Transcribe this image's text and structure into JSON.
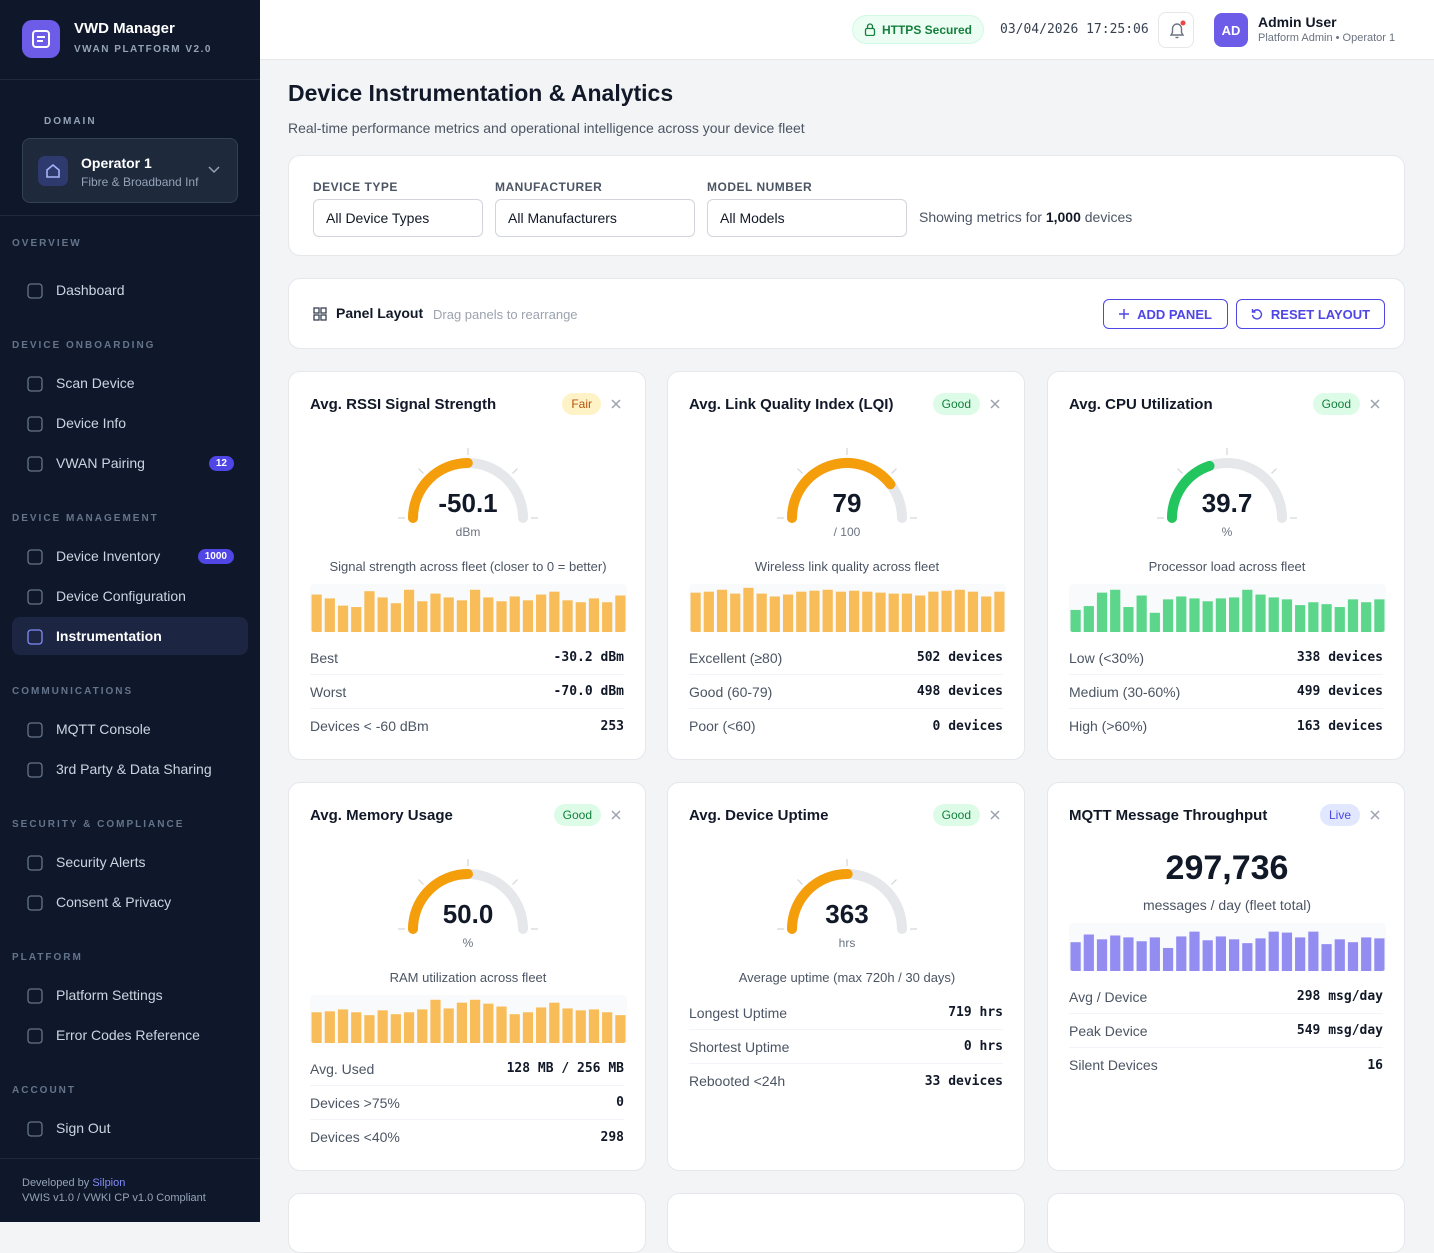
{
  "sidebar": {
    "brand": {
      "title": "VWD Manager",
      "subtitle": "VWAN PLATFORM V2.0"
    },
    "domain": {
      "label": "DOMAIN",
      "name": "Operator 1",
      "sub": "Fibre & Broadband Inf"
    },
    "sections": [
      {
        "title": "OVERVIEW",
        "items": [
          {
            "label": "Dashboard"
          }
        ]
      },
      {
        "title": "DEVICE ONBOARDING",
        "items": [
          {
            "label": "Scan Device"
          },
          {
            "label": "Device Info"
          },
          {
            "label": "VWAN Pairing",
            "badge": "12"
          }
        ]
      },
      {
        "title": "DEVICE MANAGEMENT",
        "items": [
          {
            "label": "Device Inventory",
            "badge": "1000"
          },
          {
            "label": "Device Configuration"
          },
          {
            "label": "Instrumentation",
            "active": true
          }
        ]
      },
      {
        "title": "COMMUNICATIONS",
        "items": [
          {
            "label": "MQTT Console"
          },
          {
            "label": "3rd Party & Data Sharing"
          }
        ]
      },
      {
        "title": "SECURITY & COMPLIANCE",
        "items": [
          {
            "label": "Security Alerts"
          },
          {
            "label": "Consent & Privacy"
          }
        ]
      },
      {
        "title": "PLATFORM",
        "items": [
          {
            "label": "Platform Settings"
          },
          {
            "label": "Error Codes Reference"
          }
        ]
      },
      {
        "title": "ACCOUNT",
        "items": [
          {
            "label": "Sign Out"
          }
        ]
      }
    ],
    "footer": {
      "developed": "Developed by",
      "by": "Silpion",
      "compliance": "VWIS v1.0 / VWKI CP v1.0 Compliant"
    }
  },
  "topbar": {
    "secure": "HTTPS Secured",
    "datetime": "03/04/2026 17:25:06",
    "user": {
      "initials": "AD",
      "name": "Admin User",
      "role": "Platform Admin • Operator 1"
    }
  },
  "header": {
    "title": "Device Instrumentation & Analytics",
    "subtitle": "Real-time performance metrics and operational intelligence across your device fleet"
  },
  "filters": {
    "fields": [
      {
        "label": "DEVICE TYPE",
        "value": "All Device Types"
      },
      {
        "label": "MANUFACTURER",
        "value": "All Manufacturers"
      },
      {
        "label": "MODEL NUMBER",
        "value": "All Models"
      }
    ],
    "summary": {
      "prefix": "Showing metrics for",
      "count": "1,000",
      "suffix": "devices"
    }
  },
  "layout": {
    "title": "Panel Layout",
    "hint": "Drag panels to rearrange",
    "add": "ADD PANEL",
    "reset": "RESET LAYOUT"
  },
  "panels": [
    {
      "title": "Avg. RSSI Signal Strength",
      "status": "Fair",
      "status_color": "#fef3c7",
      "status_text_color": "#b45309",
      "gauge": {
        "value": -50.1,
        "unit": "dBm",
        "scale": [
          -100,
          0
        ],
        "color": "#f59e0b"
      },
      "caption": "Signal strength across fleet (closer to 0 = better)",
      "bars": {
        "color": "#f8bd58",
        "ylim": [
          0,
          100
        ],
        "values": [
          78,
          70,
          55,
          52,
          85,
          72,
          60,
          88,
          64,
          80,
          72,
          66,
          88,
          72,
          64,
          74,
          66,
          78,
          84,
          66,
          62,
          70,
          62,
          76
        ]
      },
      "rows": [
        {
          "label": "Best",
          "value": "-30.2 dBm"
        },
        {
          "label": "Worst",
          "value": "-70.0 dBm"
        },
        {
          "label": "Devices < -60 dBm",
          "value": "253"
        }
      ]
    },
    {
      "title": "Avg. Link Quality Index (LQI)",
      "status": "Good",
      "status_color": "#dcfce7",
      "status_text_color": "#15803d",
      "gauge": {
        "value": 79,
        "unit": "/ 100",
        "scale": [
          0,
          100
        ],
        "color": "#f59e0b"
      },
      "caption": "Wireless link quality across fleet",
      "bars": {
        "color": "#f8bd58",
        "ylim": [
          0,
          100
        ],
        "values": [
          82,
          84,
          88,
          80,
          92,
          80,
          74,
          78,
          84,
          86,
          88,
          84,
          86,
          84,
          82,
          80,
          80,
          76,
          84,
          86,
          88,
          84,
          74,
          84
        ]
      },
      "rows": [
        {
          "label": "Excellent (≥80)",
          "value": "502 devices"
        },
        {
          "label": "Good (60-79)",
          "value": "498 devices"
        },
        {
          "label": "Poor (<60)",
          "value": "0 devices"
        }
      ]
    },
    {
      "title": "Avg. CPU Utilization",
      "status": "Good",
      "status_color": "#dcfce7",
      "status_text_color": "#15803d",
      "gauge": {
        "value": 39.7,
        "unit": "%",
        "scale": [
          0,
          100
        ],
        "color": "#22c55e"
      },
      "caption": "Processor load across fleet",
      "bars": {
        "color": "#5cd68b",
        "ylim": [
          0,
          100
        ],
        "values": [
          46,
          54,
          82,
          88,
          52,
          76,
          40,
          68,
          74,
          70,
          64,
          70,
          72,
          88,
          78,
          72,
          68,
          56,
          62,
          58,
          52,
          68,
          62,
          68
        ]
      },
      "rows": [
        {
          "label": "Low (<30%)",
          "value": "338 devices"
        },
        {
          "label": "Medium (30-60%)",
          "value": "499 devices"
        },
        {
          "label": "High (>60%)",
          "value": "163 devices"
        }
      ]
    },
    {
      "title": "Avg. Memory Usage",
      "status": "Good",
      "status_color": "#dcfce7",
      "status_text_color": "#15803d",
      "gauge": {
        "value": 50,
        "label": "50.0",
        "unit": "%",
        "scale": [
          0,
          100
        ],
        "color": "#f59e0b"
      },
      "caption": "RAM utilization across fleet",
      "bars": {
        "color": "#f8bd58",
        "ylim": [
          0,
          100
        ],
        "values": [
          64,
          66,
          70,
          64,
          58,
          68,
          60,
          64,
          70,
          90,
          72,
          84,
          90,
          82,
          76,
          60,
          64,
          74,
          84,
          72,
          68,
          70,
          64,
          58
        ]
      },
      "rows": [
        {
          "label": "Avg. Used",
          "value": "128 MB / 256 MB"
        },
        {
          "label": "Devices >75%",
          "value": "0"
        },
        {
          "label": "Devices <40%",
          "value": "298"
        }
      ]
    },
    {
      "title": "Avg. Device Uptime",
      "status": "Good",
      "status_color": "#dcfce7",
      "status_text_color": "#15803d",
      "gauge": {
        "value": 363,
        "unit": "hrs",
        "scale": [
          0,
          720
        ],
        "color": "#f59e0b"
      },
      "caption": "Average uptime (max 720h / 30 days)",
      "rows": [
        {
          "label": "Longest Uptime",
          "value": "719 hrs"
        },
        {
          "label": "Shortest Uptime",
          "value": "0 hrs"
        },
        {
          "label": "Rebooted <24h",
          "value": "33 devices"
        }
      ]
    },
    {
      "title": "MQTT Message Throughput",
      "status": "Live",
      "status_color": "#e0e7ff",
      "status_text_color": "#4f46e5",
      "total": "297,736",
      "caption": "messages / day (fleet total)",
      "bars": {
        "color": "#938df1",
        "ylim": [
          0,
          100
        ],
        "values": [
          60,
          76,
          66,
          74,
          70,
          62,
          70,
          48,
          72,
          82,
          64,
          72,
          66,
          58,
          68,
          82,
          80,
          70,
          82,
          56,
          66,
          60,
          70,
          68
        ]
      },
      "rows": [
        {
          "label": "Avg / Device",
          "value": "298 msg/day"
        },
        {
          "label": "Peak Device",
          "value": "549 msg/day"
        },
        {
          "label": "Silent Devices",
          "value": "16"
        }
      ]
    }
  ]
}
